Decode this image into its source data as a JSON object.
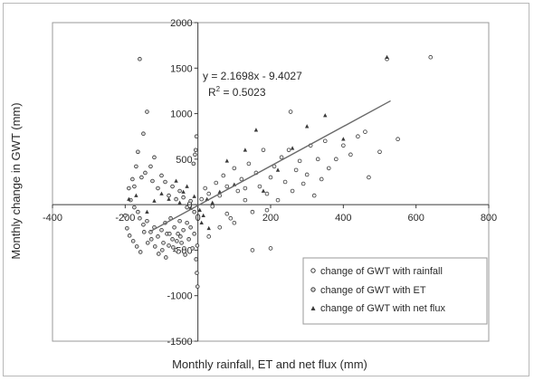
{
  "chart_data": {
    "type": "scatter",
    "title": "",
    "xlabel": "Monthly rainfall, ET and net flux (mm)",
    "ylabel": "Monthly change in GWT (mm)",
    "xlim": [
      -400,
      800
    ],
    "ylim": [
      -1500,
      2000
    ],
    "x_ticks": [
      -400,
      -200,
      0,
      200,
      400,
      600,
      800
    ],
    "y_ticks": [
      -1500,
      -1000,
      -500,
      0,
      500,
      1000,
      1500,
      2000
    ],
    "x_tick_labels": [
      "-400",
      "-200",
      "0",
      "200",
      "400",
      "600",
      "800"
    ],
    "y_tick_labels": [
      "-1500",
      "-1000",
      "-500",
      "0",
      "500",
      "1000",
      "1500",
      "2000"
    ],
    "grid": false,
    "legend_position": "bottom-right",
    "trendline": {
      "equation": "y = 2.1698x - 9.4027",
      "r2_label": "R",
      "r2_sup": "2",
      "r2_value": " = 0.5023",
      "slope": 2.1698,
      "intercept": -9.4027,
      "x_range": [
        -130,
        530
      ]
    },
    "series": [
      {
        "name": "change of GWT with rainfall",
        "marker": "circle",
        "points": [
          [
            10,
            60
          ],
          [
            20,
            180
          ],
          [
            30,
            120
          ],
          [
            40,
            -20
          ],
          [
            50,
            240
          ],
          [
            60,
            100
          ],
          [
            70,
            320
          ],
          [
            80,
            200
          ],
          [
            90,
            -150
          ],
          [
            100,
            400
          ],
          [
            110,
            150
          ],
          [
            120,
            280
          ],
          [
            130,
            50
          ],
          [
            140,
            450
          ],
          [
            150,
            -80
          ],
          [
            160,
            350
          ],
          [
            170,
            200
          ],
          [
            180,
            600
          ],
          [
            190,
            120
          ],
          [
            200,
            300
          ],
          [
            210,
            420
          ],
          [
            220,
            50
          ],
          [
            230,
            520
          ],
          [
            240,
            250
          ],
          [
            250,
            600
          ],
          [
            260,
            150
          ],
          [
            270,
            380
          ],
          [
            280,
            480
          ],
          [
            290,
            230
          ],
          [
            300,
            330
          ],
          [
            310,
            650
          ],
          [
            320,
            100
          ],
          [
            330,
            500
          ],
          [
            340,
            280
          ],
          [
            350,
            700
          ],
          [
            360,
            400
          ],
          [
            380,
            500
          ],
          [
            400,
            650
          ],
          [
            420,
            550
          ],
          [
            440,
            750
          ],
          [
            460,
            800
          ],
          [
            470,
            300
          ],
          [
            500,
            580
          ],
          [
            520,
            1600
          ],
          [
            550,
            720
          ],
          [
            640,
            1620
          ],
          [
            255,
            1020
          ],
          [
            200,
            -480
          ],
          [
            150,
            -500
          ],
          [
            60,
            -250
          ],
          [
            30,
            -350
          ],
          [
            100,
            -200
          ],
          [
            80,
            -100
          ],
          [
            190,
            -60
          ],
          [
            130,
            180
          ]
        ]
      },
      {
        "name": "change of GWT with ET",
        "marker": "circle",
        "points": [
          [
            -160,
            1600
          ],
          [
            -140,
            1020
          ],
          [
            -150,
            780
          ],
          [
            -165,
            580
          ],
          [
            -170,
            420
          ],
          [
            -155,
            300
          ],
          [
            -175,
            200
          ],
          [
            -180,
            280
          ],
          [
            -145,
            350
          ],
          [
            -130,
            420
          ],
          [
            -120,
            520
          ],
          [
            -125,
            260
          ],
          [
            -110,
            180
          ],
          [
            -100,
            320
          ],
          [
            -90,
            250
          ],
          [
            -80,
            100
          ],
          [
            -70,
            200
          ],
          [
            -60,
            60
          ],
          [
            -50,
            150
          ],
          [
            -40,
            80
          ],
          [
            -30,
            -30
          ],
          [
            -20,
            40
          ],
          [
            -10,
            -80
          ],
          [
            -190,
            180
          ],
          [
            -185,
            50
          ],
          [
            -175,
            -30
          ],
          [
            -165,
            -80
          ],
          [
            -160,
            -150
          ],
          [
            -150,
            -220
          ],
          [
            -140,
            -180
          ],
          [
            -130,
            -300
          ],
          [
            -120,
            -250
          ],
          [
            -110,
            -350
          ],
          [
            -100,
            -280
          ],
          [
            -95,
            -420
          ],
          [
            -90,
            -200
          ],
          [
            -85,
            -320
          ],
          [
            -80,
            -450
          ],
          [
            -75,
            -150
          ],
          [
            -70,
            -380
          ],
          [
            -65,
            -250
          ],
          [
            -60,
            -500
          ],
          [
            -55,
            -320
          ],
          [
            -50,
            -180
          ],
          [
            -45,
            -420
          ],
          [
            -40,
            -280
          ],
          [
            -35,
            -550
          ],
          [
            -30,
            -200
          ],
          [
            -25,
            -380
          ],
          [
            -20,
            -250
          ],
          [
            -15,
            -480
          ],
          [
            -10,
            -320
          ],
          [
            -5,
            -600
          ],
          [
            -2,
            -450
          ],
          [
            -1,
            -900
          ],
          [
            -3,
            -750
          ],
          [
            -4,
            750
          ],
          [
            -6,
            600
          ],
          [
            -8,
            550
          ],
          [
            -12,
            450
          ],
          [
            -200,
            -120
          ],
          [
            -195,
            -260
          ],
          [
            -188,
            -340
          ],
          [
            -178,
            -400
          ],
          [
            -168,
            -460
          ],
          [
            -158,
            -520
          ],
          [
            -148,
            -300
          ],
          [
            -138,
            -420
          ],
          [
            -128,
            -380
          ],
          [
            -118,
            -460
          ],
          [
            -108,
            -540
          ],
          [
            -98,
            -500
          ],
          [
            -88,
            -580
          ],
          [
            -78,
            -320
          ],
          [
            -68,
            -470
          ],
          [
            -58,
            -400
          ],
          [
            -48,
            -350
          ],
          [
            -38,
            -480
          ]
        ]
      },
      {
        "name": "change of GWT with net flux",
        "marker": "triangle",
        "points": [
          [
            -120,
            40
          ],
          [
            -100,
            120
          ],
          [
            -80,
            60
          ],
          [
            -60,
            260
          ],
          [
            -50,
            20
          ],
          [
            -40,
            140
          ],
          [
            -30,
            200
          ],
          [
            -20,
            -40
          ],
          [
            -10,
            90
          ],
          [
            5,
            -60
          ],
          [
            15,
            -120
          ],
          [
            25,
            60
          ],
          [
            40,
            20
          ],
          [
            60,
            140
          ],
          [
            80,
            480
          ],
          [
            100,
            220
          ],
          [
            130,
            600
          ],
          [
            160,
            820
          ],
          [
            180,
            150
          ],
          [
            220,
            380
          ],
          [
            260,
            620
          ],
          [
            300,
            860
          ],
          [
            350,
            980
          ],
          [
            400,
            720
          ],
          [
            520,
            1620
          ],
          [
            -140,
            -80
          ],
          [
            -170,
            100
          ],
          [
            -190,
            60
          ],
          [
            10,
            -200
          ],
          [
            30,
            -260
          ]
        ]
      }
    ]
  }
}
